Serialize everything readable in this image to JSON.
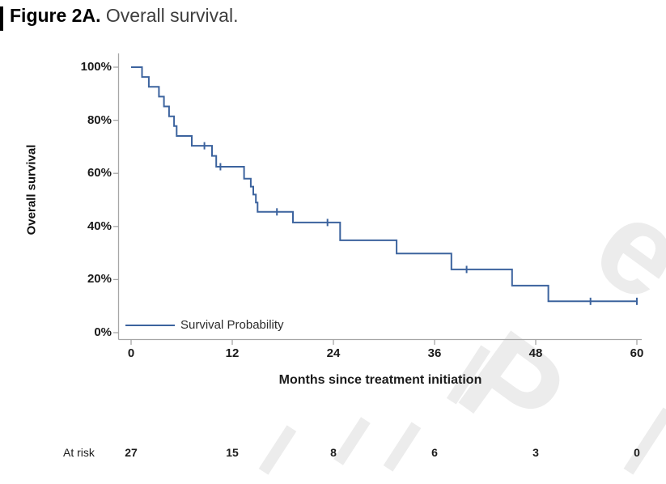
{
  "figure": {
    "label": "Figure 2A.",
    "caption": "Overall survival."
  },
  "chart_data": {
    "type": "line",
    "subtype": "kaplan-meier-step",
    "title": "Figure 2A. Overall survival.",
    "xlabel": "Months since treatment initiation",
    "ylabel": "Overall survival",
    "xlim": [
      0,
      60
    ],
    "ylim": [
      0,
      100
    ],
    "grid": false,
    "axis_color": "#a6a6a6",
    "x_ticks": [
      0,
      12,
      24,
      36,
      48,
      60
    ],
    "x_tick_labels": [
      "0",
      "12",
      "24",
      "36",
      "48",
      "60"
    ],
    "y_ticks": [
      0,
      20,
      40,
      60,
      80,
      100
    ],
    "y_tick_labels": [
      "0%",
      "20%",
      "40%",
      "60%",
      "80%",
      "100%"
    ],
    "legend": {
      "label": "Survival Probability",
      "position": "inside-bottom-left"
    },
    "series": [
      {
        "name": "Survival Probability",
        "color": "#3c639e",
        "unit": "percent",
        "steps": [
          [
            0,
            100
          ],
          [
            1.3,
            96.3
          ],
          [
            2.1,
            92.6
          ],
          [
            3.3,
            88.9
          ],
          [
            3.9,
            85.2
          ],
          [
            4.5,
            81.5
          ],
          [
            5.1,
            77.8
          ],
          [
            5.4,
            74.1
          ],
          [
            7.2,
            70.4
          ],
          [
            9.6,
            66.6
          ],
          [
            10.1,
            62.5
          ],
          [
            13.4,
            58.0
          ],
          [
            14.2,
            55.0
          ],
          [
            14.5,
            52.0
          ],
          [
            14.8,
            49.0
          ],
          [
            15.0,
            45.5
          ],
          [
            19.2,
            41.5
          ],
          [
            24.8,
            34.8
          ],
          [
            31.5,
            29.8
          ],
          [
            38.0,
            23.8
          ],
          [
            45.2,
            17.7
          ],
          [
            49.5,
            11.8
          ]
        ],
        "end_month": 60,
        "censor_marks": [
          [
            8.7,
            70.4
          ],
          [
            10.6,
            62.5
          ],
          [
            17.3,
            45.5
          ],
          [
            23.3,
            41.5
          ],
          [
            39.8,
            23.8
          ],
          [
            54.5,
            11.8
          ],
          [
            60,
            11.8
          ]
        ]
      }
    ]
  },
  "at_risk": {
    "label": "At risk",
    "months": [
      0,
      12,
      24,
      36,
      48,
      60
    ],
    "values": [
      "27",
      "15",
      "8",
      "6",
      "3",
      "0"
    ]
  },
  "watermark": {
    "color": "#ececec",
    "letters": [
      "P",
      "e"
    ]
  }
}
